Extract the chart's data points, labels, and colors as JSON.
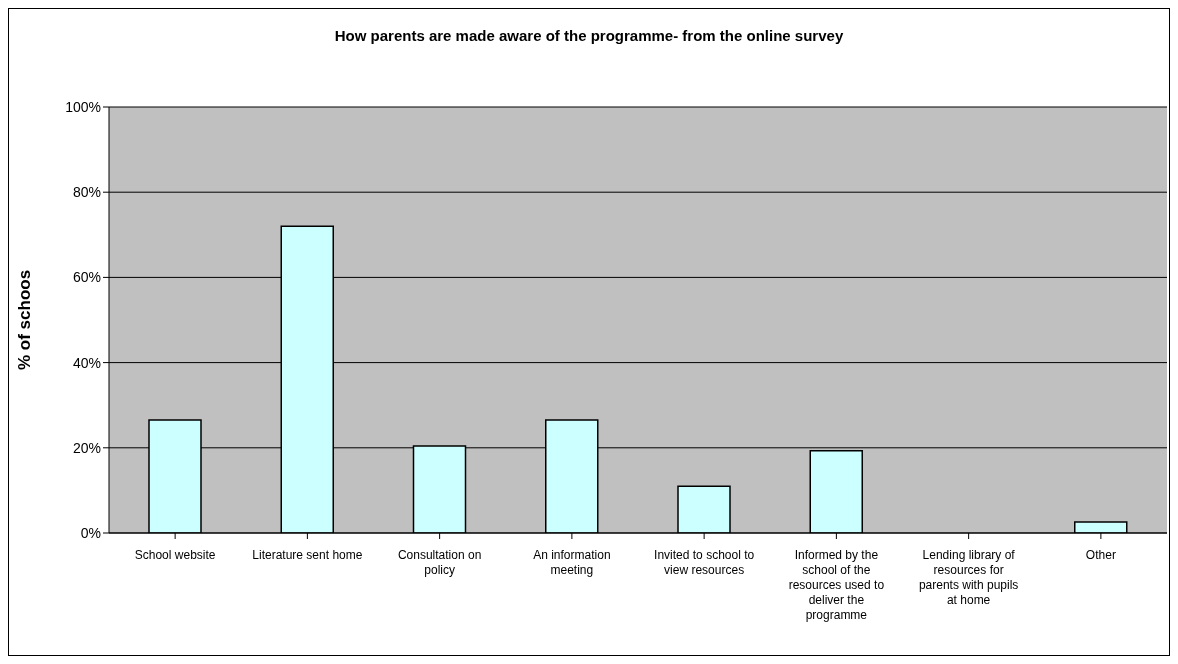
{
  "chart_data": {
    "type": "bar",
    "title": "How parents are made aware of the programme- from the online survey",
    "ylabel": "% of schoos",
    "categories": [
      "School website",
      "Literature sent home",
      "Consultation on policy",
      "An information meeting",
      "Invited to school to view resources",
      "Informed by the school of the resources used to deliver the programme",
      "Lending library of resources for parents with pupils at home",
      "Other"
    ],
    "values": [
      26.5,
      72,
      20.4,
      26.5,
      11,
      19.3,
      0,
      2.6
    ],
    "color": "#ccffff",
    "ylim": [
      0,
      100
    ],
    "yticks": [
      {
        "value": 0,
        "label": "0%"
      },
      {
        "value": 20,
        "label": "20%"
      },
      {
        "value": 40,
        "label": "40%"
      },
      {
        "value": 60,
        "label": "60%"
      },
      {
        "value": 80,
        "label": "80%"
      },
      {
        "value": 100,
        "label": "100%"
      }
    ],
    "grid": "y",
    "legend": false
  }
}
